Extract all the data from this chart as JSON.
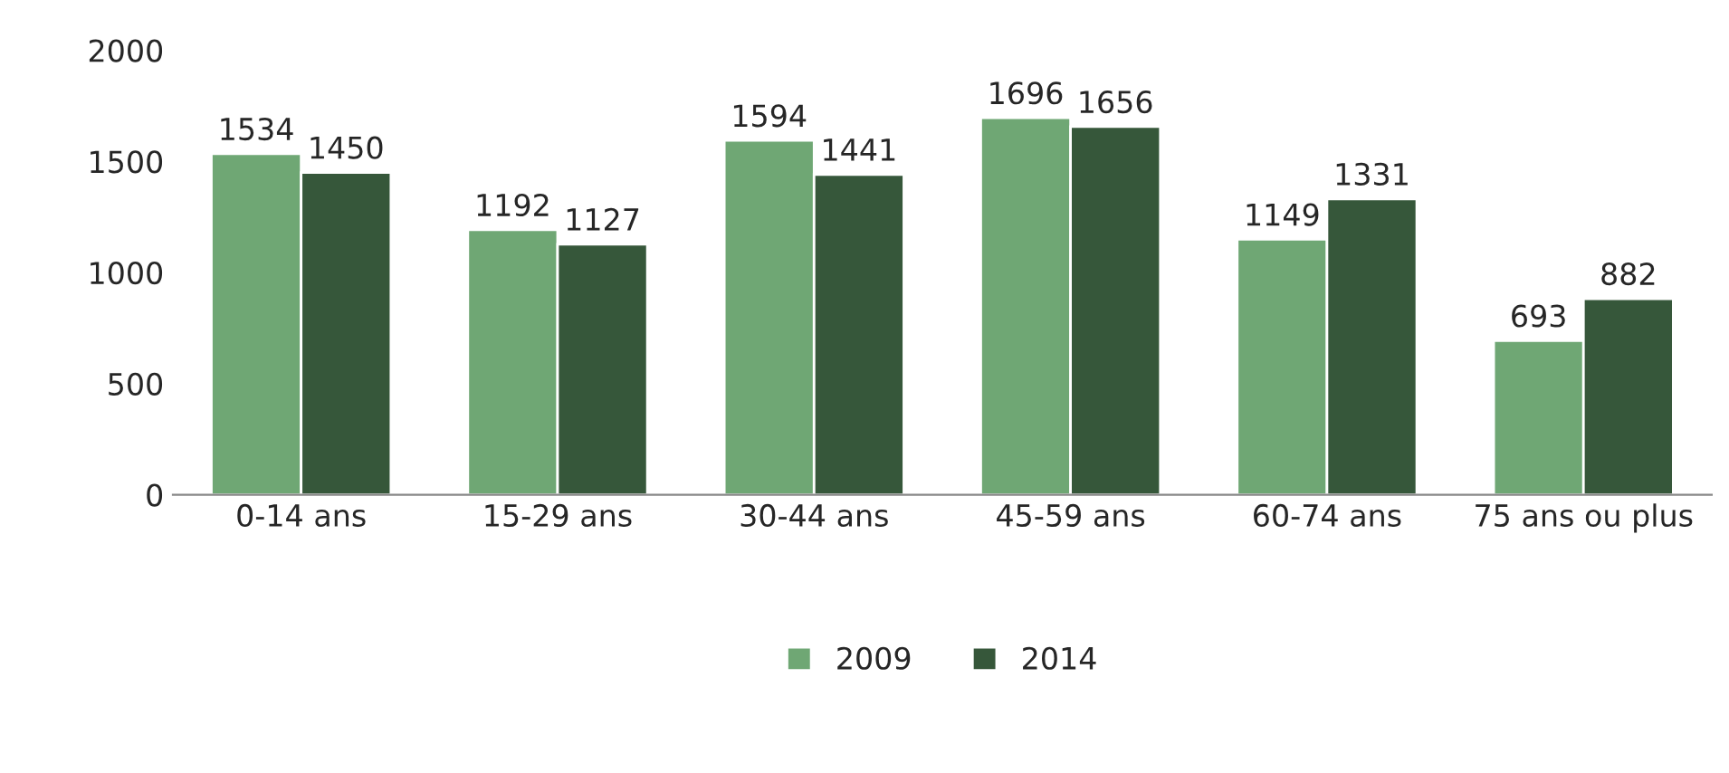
{
  "chart_data": {
    "type": "bar",
    "categories": [
      "0-14 ans",
      "15-29 ans",
      "30-44 ans",
      "45-59 ans",
      "60-74 ans",
      "75 ans ou plus"
    ],
    "series": [
      {
        "name": "2009",
        "color": "#6fa774",
        "values": [
          1534,
          1192,
          1594,
          1696,
          1149,
          693
        ]
      },
      {
        "name": "2014",
        "color": "#36573a",
        "values": [
          1450,
          1127,
          1441,
          1656,
          1331,
          882
        ]
      }
    ],
    "ylim": [
      0,
      2000
    ],
    "yticks": [
      0,
      500,
      1000,
      1500,
      2000
    ],
    "data_labels": true,
    "grid": false,
    "legend": "bottom"
  }
}
